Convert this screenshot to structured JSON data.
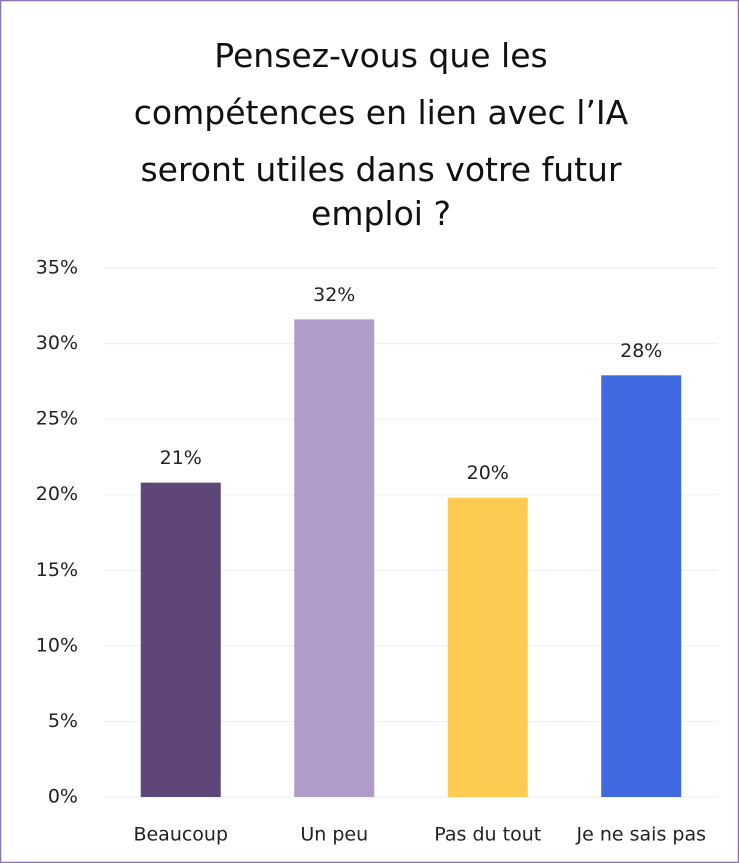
{
  "chart_data": {
    "type": "bar",
    "title": "Pensez-vous que les compétences en lien avec l’IA seront utiles dans votre futur emploi ?",
    "categories": [
      "Beaucoup",
      "Un peu",
      "Pas du tout",
      "Je ne sais pas"
    ],
    "values": [
      20.8,
      31.6,
      19.8,
      27.9
    ],
    "value_labels": [
      "21%",
      "32%",
      "20%",
      "28%"
    ],
    "colors": [
      "#5f4679",
      "#b19bc8",
      "#fecb52",
      "#4169e1"
    ],
    "ylim": [
      0,
      35
    ],
    "yticks": [
      {
        "value": 0,
        "label": "0%"
      },
      {
        "value": 5,
        "label": "5%"
      },
      {
        "value": 10,
        "label": "10%"
      },
      {
        "value": 15,
        "label": "15%"
      },
      {
        "value": 20,
        "label": "20%"
      },
      {
        "value": 25,
        "label": "25%"
      },
      {
        "value": 30,
        "label": "30%"
      },
      {
        "value": 35,
        "label": "35%"
      }
    ],
    "grid": true
  }
}
